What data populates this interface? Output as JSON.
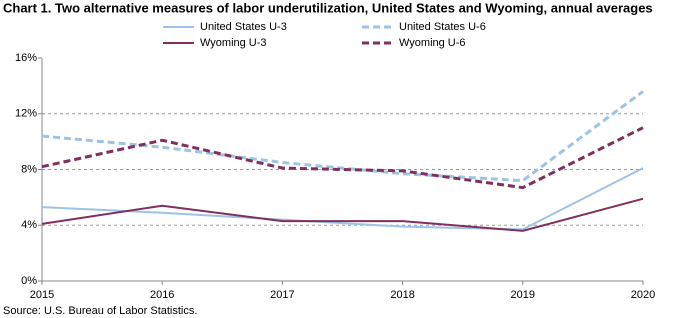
{
  "chart_data": {
    "type": "line",
    "title": "Chart 1. Two alternative measures of labor underutilization, United States and Wyoming, annual averages",
    "source": "Source: U.S. Bureau of Labor Statistics.",
    "x": [
      2015,
      2016,
      2017,
      2018,
      2019,
      2020
    ],
    "xlim": [
      2015,
      2020
    ],
    "xticks": [
      2015,
      2016,
      2017,
      2018,
      2019,
      2020
    ],
    "ylim": [
      0,
      16
    ],
    "yticks": [
      {
        "value": 0,
        "label": "0%"
      },
      {
        "value": 4,
        "label": "4%"
      },
      {
        "value": 8,
        "label": "8%"
      },
      {
        "value": 12,
        "label": "12%"
      },
      {
        "value": 16,
        "label": "16%"
      }
    ],
    "grid": true,
    "series": [
      {
        "name": "United States U-3",
        "color": "#9dc3e6",
        "dashed": false,
        "values": [
          5.3,
          4.9,
          4.4,
          3.9,
          3.7,
          8.1
        ]
      },
      {
        "name": "United States U-6",
        "color": "#9dc3e6",
        "dashed": true,
        "values": [
          10.4,
          9.6,
          8.5,
          7.7,
          7.2,
          13.6
        ]
      },
      {
        "name": "Wyoming U-3",
        "color": "#80305e",
        "dashed": false,
        "values": [
          4.1,
          5.4,
          4.3,
          4.3,
          3.6,
          5.9
        ]
      },
      {
        "name": "Wyoming U-6",
        "color": "#80305e",
        "dashed": true,
        "values": [
          8.2,
          10.1,
          8.1,
          7.9,
          6.7,
          11.0
        ]
      }
    ]
  }
}
